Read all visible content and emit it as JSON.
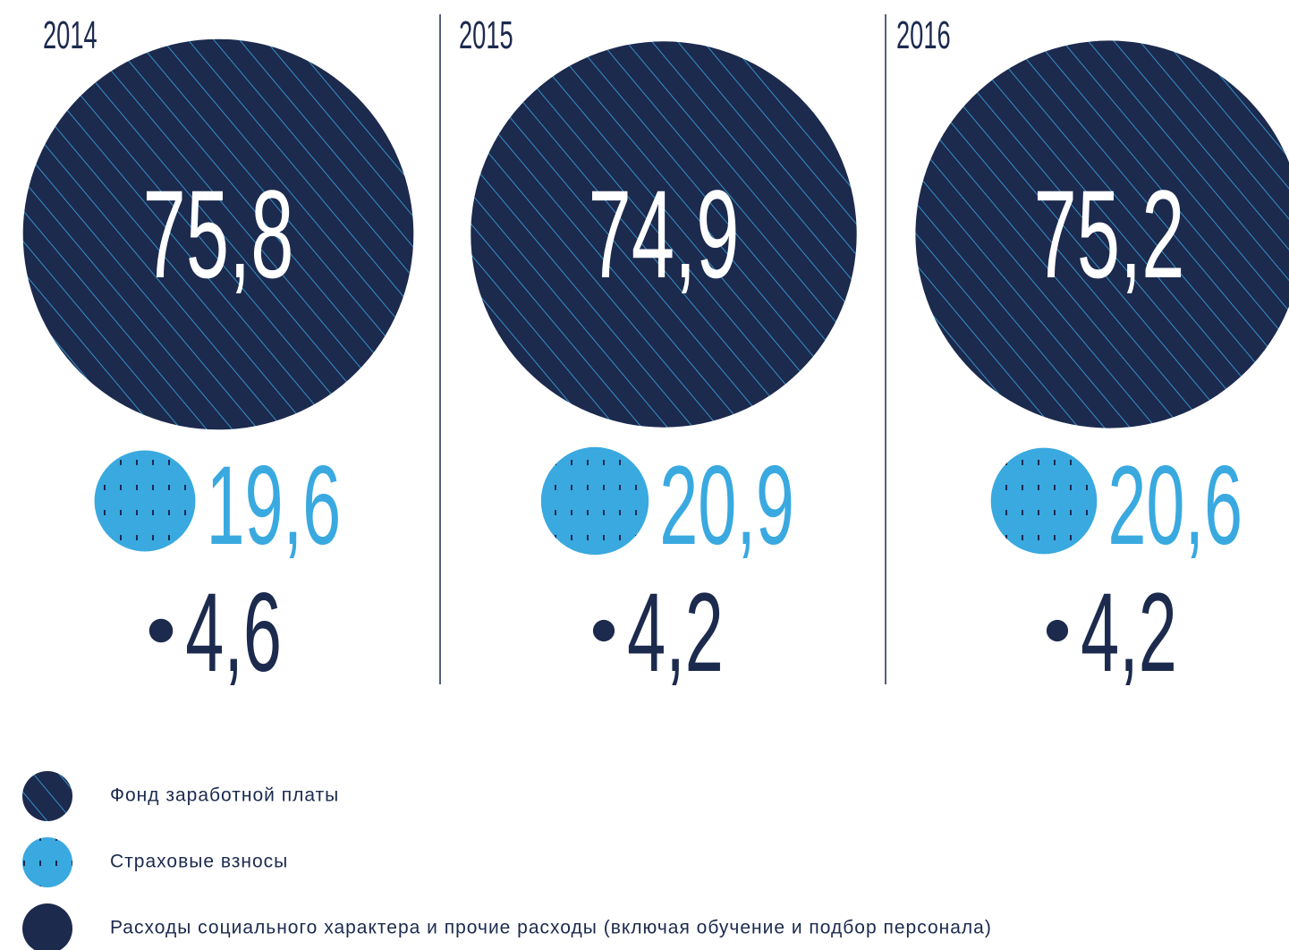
{
  "chart_data": {
    "type": "bubble",
    "categories": [
      "2014",
      "2015",
      "2016"
    ],
    "series": [
      {
        "name": "Фонд заработной платы",
        "color": "#1c2a4e",
        "pattern": "hatch",
        "values": [
          75.8,
          74.9,
          75.2
        ],
        "value_labels": [
          "75,8",
          "74,9",
          "75,2"
        ]
      },
      {
        "name": "Страховые взносы",
        "color": "#39a9e0",
        "pattern": "dots",
        "values": [
          19.6,
          20.9,
          20.6
        ],
        "value_labels": [
          "19,6",
          "20,9",
          "20,6"
        ]
      },
      {
        "name": "Расходы социального характера и прочие расходы (включая обучение и подбор персонала)",
        "color": "#1c2a4e",
        "values": [
          4.6,
          4.2,
          4.2
        ],
        "value_labels": [
          "4,6",
          "4,2",
          "4,2"
        ]
      }
    ]
  }
}
